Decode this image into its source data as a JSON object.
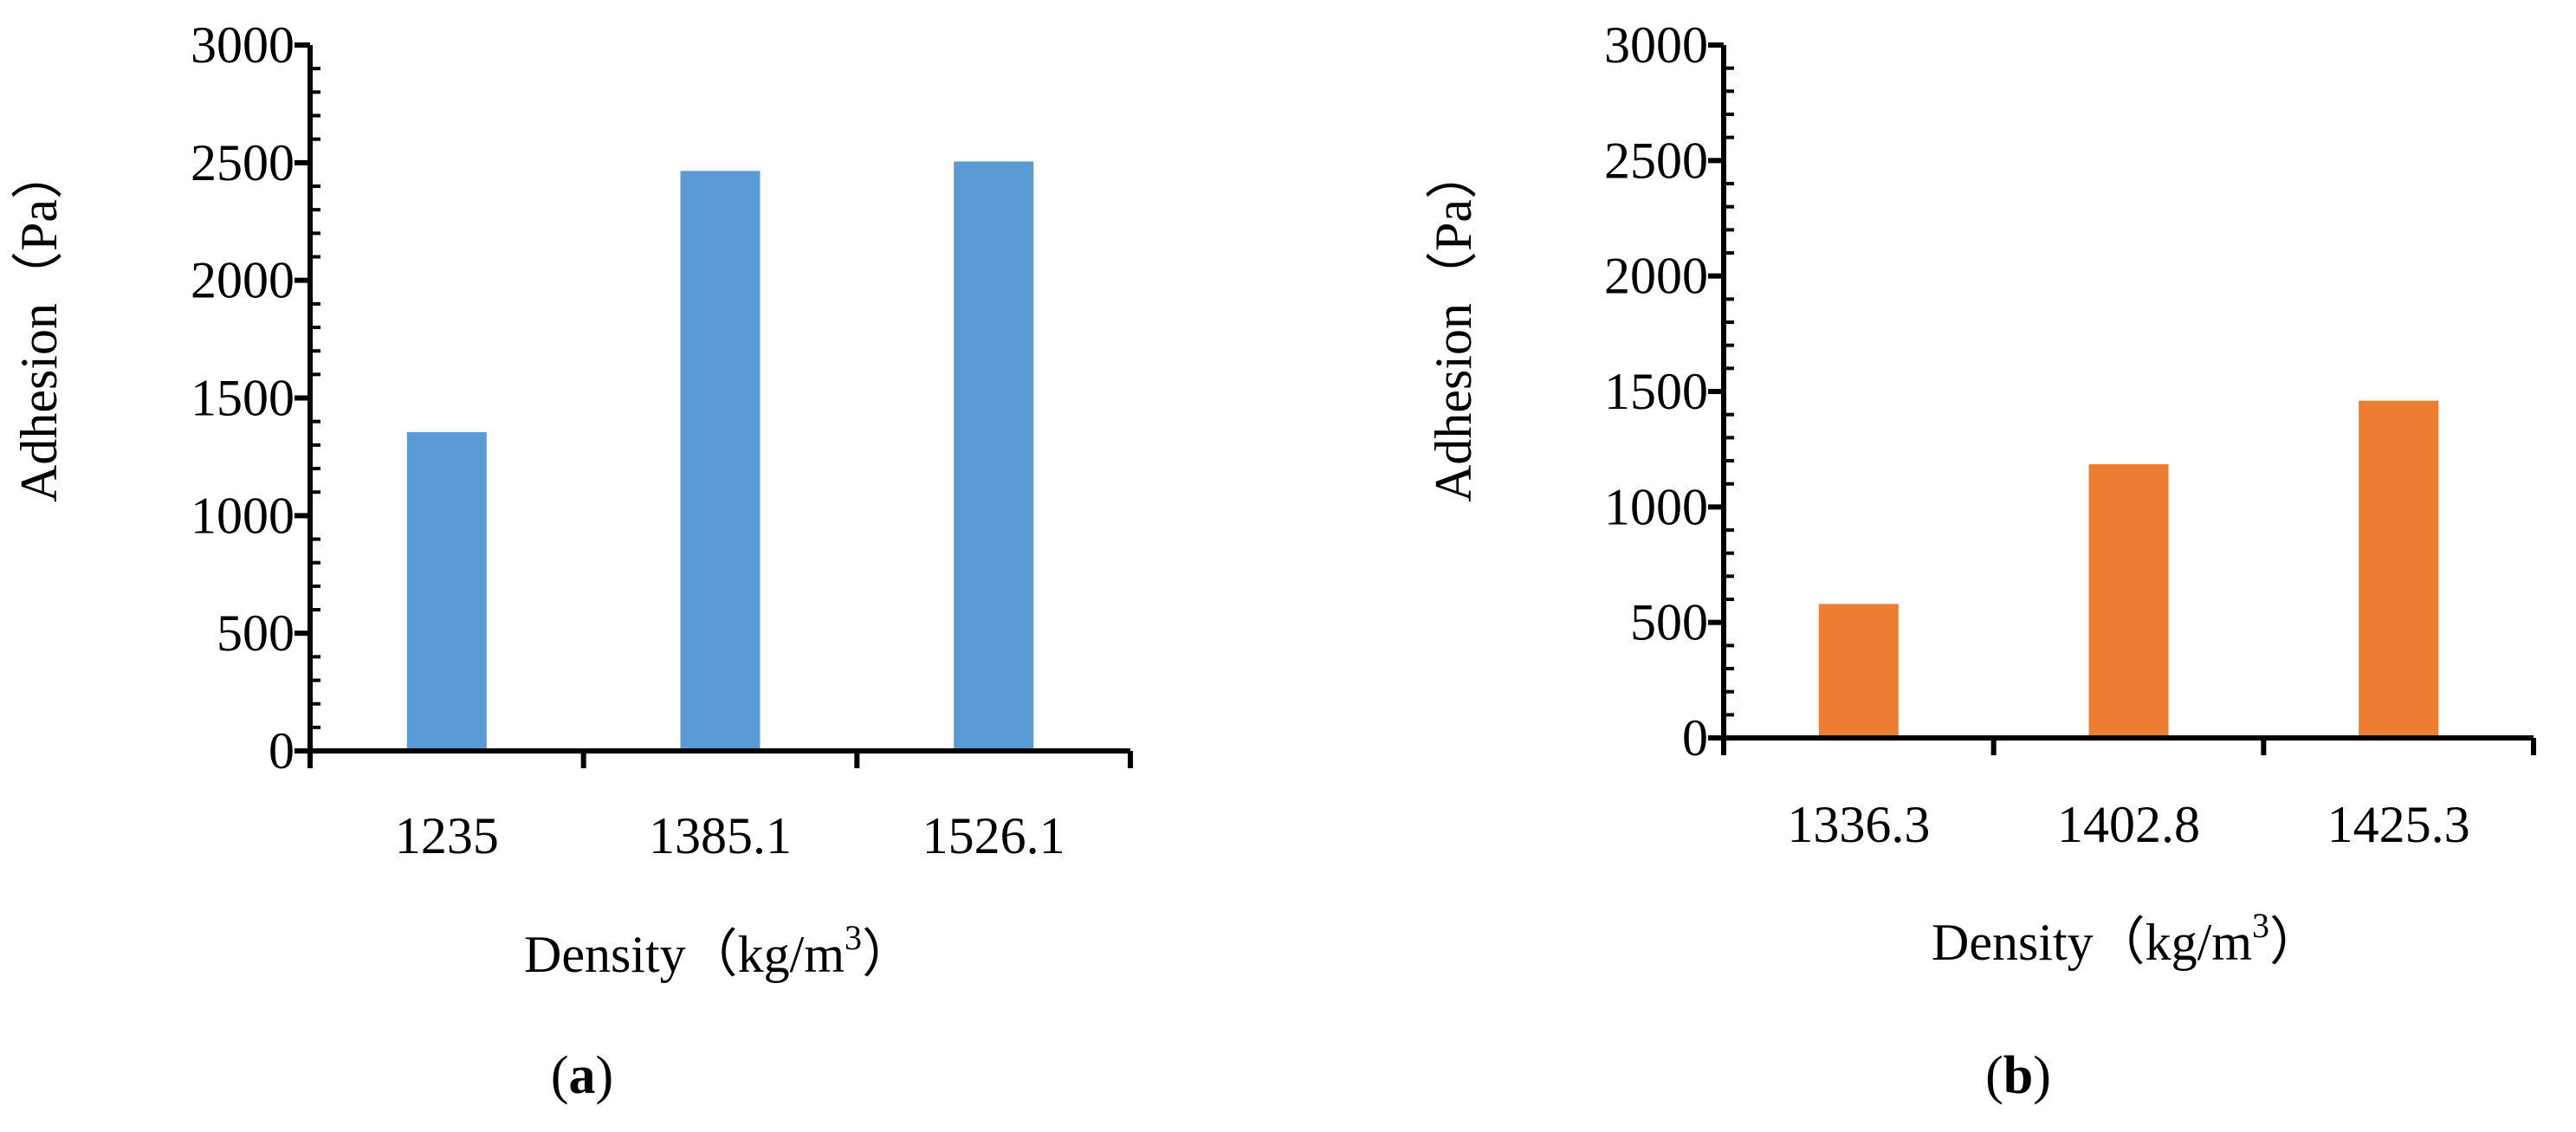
{
  "chart_data": [
    {
      "type": "bar",
      "panel": "a",
      "categories": [
        "1235",
        "1385.1",
        "1526.1"
      ],
      "values": [
        1355,
        2465,
        2505
      ],
      "xlabel": "Density（kg/m³）",
      "xlabel_parts": {
        "main": "Density（kg/m",
        "sup": "3",
        "end": "）"
      },
      "ylabel": "Adhesion（Pa）",
      "ylim": [
        0,
        3000
      ],
      "yticks": [
        0,
        500,
        1000,
        1500,
        2000,
        2500,
        3000
      ],
      "color": "#5B9BD5"
    },
    {
      "type": "bar",
      "panel": "b",
      "categories": [
        "1336.3",
        "1402.8",
        "1425.3"
      ],
      "values": [
        580,
        1185,
        1460
      ],
      "xlabel": "Density（kg/m³）",
      "xlabel_parts": {
        "main": "Density（kg/m",
        "sup": "3",
        "end": "）"
      },
      "ylabel": "Adhesion（Pa）",
      "ylim": [
        0,
        3000
      ],
      "yticks": [
        0,
        500,
        1000,
        1500,
        2000,
        2500,
        3000
      ],
      "color": "#ED7D31"
    }
  ],
  "panel_labels": [
    {
      "open": "(",
      "letter": "a",
      "close": ")"
    },
    {
      "open": "(",
      "letter": "b",
      "close": ")"
    }
  ]
}
